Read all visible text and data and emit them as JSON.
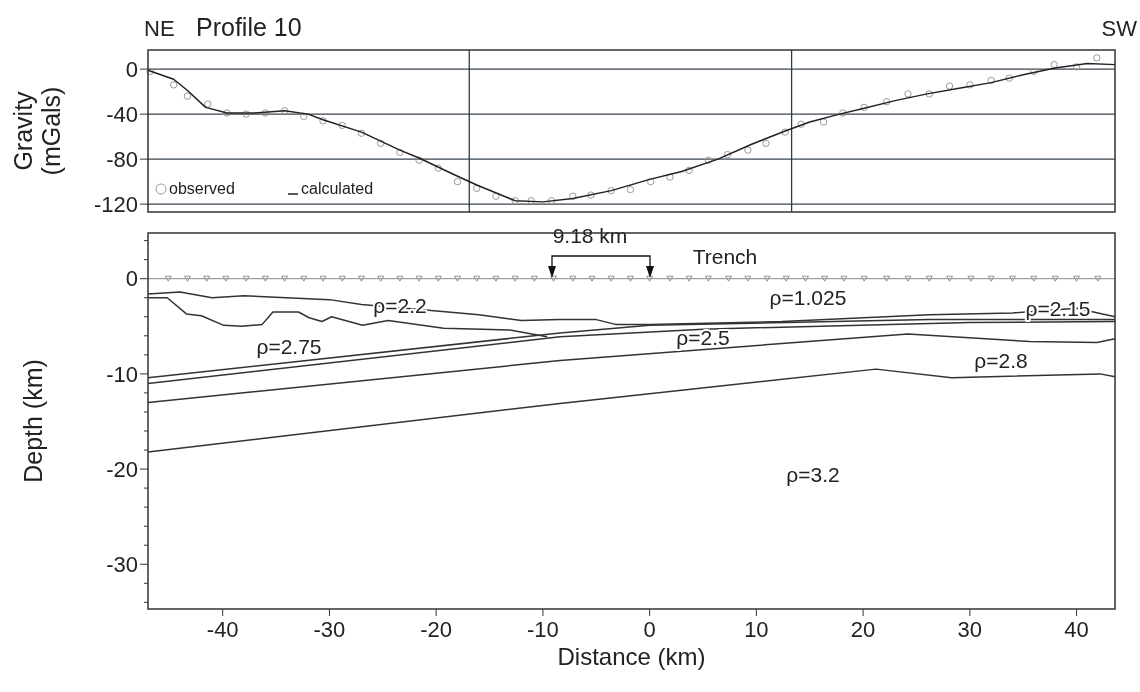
{
  "chart_data": [
    {
      "type": "scatter",
      "title": "Profile 10",
      "ylabel": "Gravity (mGals)",
      "annotations": [
        "NE",
        "SW"
      ],
      "xlim": [
        -47,
        43.6
      ],
      "ylim": [
        -127,
        17
      ],
      "yticks": [
        0,
        -40,
        -80,
        -120
      ],
      "tick_labels": "y",
      "grid": "y",
      "legend": "bottom left",
      "ref_lines": [
        {
          "axis": "x",
          "value": -16.9,
          "color": "#2e3b4a"
        },
        {
          "axis": "x",
          "value": 13.3,
          "color": "#2e3b4a"
        }
      ],
      "series": [
        {
          "name": "observed",
          "marker": "circle",
          "color": "#999999",
          "x": [
            -46.8,
            -44.6,
            -43.3,
            -41.4,
            -39.6,
            -37.8,
            -36.0,
            -34.2,
            -32.4,
            -30.6,
            -28.8,
            -27.0,
            -25.2,
            -23.4,
            -21.6,
            -19.8,
            -18.0,
            -16.2,
            -14.4,
            -12.6,
            -11.1,
            -9.2,
            -7.2,
            -5.5,
            -3.6,
            -1.8,
            0.1,
            1.9,
            3.7,
            5.5,
            7.3,
            9.2,
            10.9,
            12.7,
            14.2,
            16.3,
            18.1,
            20.1,
            22.2,
            24.2,
            26.2,
            28.1,
            30.0,
            32.0,
            33.7,
            36.0,
            37.9,
            40.0,
            41.9
          ],
          "values": [
            -2,
            -14,
            -24,
            -31,
            -39,
            -40,
            -39,
            -37,
            -42,
            -46,
            -50,
            -57,
            -66,
            -74,
            -81,
            -88,
            -100,
            -106,
            -113,
            -117,
            -117,
            -117,
            -113,
            -112,
            -108,
            -107,
            -100,
            -96,
            -90,
            -81,
            -76,
            -72,
            -66,
            -56,
            -49,
            -47,
            -39,
            -34,
            -29,
            -22,
            -22,
            -15,
            -14,
            -10,
            -8,
            -2,
            4,
            2,
            10
          ]
        },
        {
          "name": "calculated",
          "type": "line",
          "color": "#222222",
          "x": [
            -47,
            -44.6,
            -43.3,
            -41.6,
            -39.6,
            -37,
            -34.2,
            -32,
            -30.6,
            -27,
            -23.4,
            -21.6,
            -18.5,
            -16.2,
            -12.6,
            -10,
            -7.2,
            -3.6,
            0,
            3,
            6.4,
            9.5,
            12.7,
            15,
            17.8,
            20,
            23,
            26,
            29,
            32,
            35,
            38,
            41,
            43.6
          ],
          "values": [
            -1,
            -9,
            -19,
            -34,
            -39,
            -39,
            -37,
            -40,
            -45,
            -56,
            -72,
            -79,
            -93,
            -103,
            -117,
            -118,
            -115,
            -108,
            -98,
            -91,
            -80,
            -67,
            -55,
            -47,
            -40,
            -35,
            -28,
            -22,
            -17,
            -12,
            -5,
            1,
            5,
            4
          ]
        }
      ]
    },
    {
      "type": "line",
      "xlabel": "Distance (km)",
      "ylabel": "Depth (km)",
      "xlim": [
        -47,
        43.6
      ],
      "ylim": [
        -34.7,
        4.8
      ],
      "xticks": [
        -40,
        -30,
        -20,
        -10,
        0,
        10,
        20,
        30,
        40
      ],
      "yticks": [
        {
          "value": 4,
          "label": null
        },
        {
          "value": 2,
          "label": null
        },
        0,
        {
          "value": -2,
          "label": null
        },
        {
          "value": -4,
          "label": null
        },
        {
          "value": -6,
          "label": null
        },
        {
          "value": -8,
          "label": null
        },
        -10,
        {
          "value": -12,
          "label": null
        },
        {
          "value": -14,
          "label": null
        },
        {
          "value": -16,
          "label": null
        },
        {
          "value": -18,
          "label": null
        },
        -20,
        {
          "value": -22,
          "label": null
        },
        {
          "value": -24,
          "label": null
        },
        {
          "value": -26,
          "label": null
        },
        {
          "value": -28,
          "label": null
        },
        -30,
        {
          "value": -32,
          "label": null
        },
        {
          "value": -34,
          "label": null
        }
      ],
      "ref_lines": [
        {
          "axis": "y",
          "value": 0,
          "color": "#888888"
        }
      ],
      "annotations": [
        "9.18 km",
        "Trench",
        "ρ=2.2",
        "ρ=2.75",
        "ρ=1.025",
        "ρ=2.15",
        "ρ=2.5",
        "ρ=2.8",
        "ρ=3.2"
      ],
      "series": [
        {
          "type": "scatter",
          "marker": "triangle",
          "color": "#888888",
          "x": [
            -45.1,
            -43.3,
            -41.5,
            -39.7,
            -37.8,
            -36.0,
            -34.2,
            -32.4,
            -30.6,
            -28.8,
            -27.0,
            -25.2,
            -23.4,
            -21.6,
            -19.8,
            -18.0,
            -16.2,
            -14.4,
            -12.6,
            -10.8,
            -9.0,
            -7.2,
            -5.4,
            -3.6,
            -1.8,
            0,
            1.9,
            3.7,
            5.5,
            7.4,
            9.2,
            11.0,
            12.8,
            14.6,
            16.4,
            18.2,
            20.1,
            22.2,
            24.2,
            26.2,
            28.1,
            30.1,
            32.0,
            34.0,
            36.0,
            38.0,
            40.0,
            42.0
          ],
          "values": [
            0,
            0,
            0,
            0,
            0,
            0,
            0,
            0,
            0,
            0,
            0,
            0,
            0,
            0,
            0,
            0,
            0,
            0,
            0,
            0,
            0,
            0,
            0,
            0,
            0,
            0,
            0,
            0,
            0,
            0,
            0,
            0,
            0,
            0,
            0,
            0,
            0,
            0,
            0,
            0,
            0,
            0,
            0,
            0,
            0,
            0,
            0,
            0
          ]
        },
        {
          "type": "line",
          "color": "#333333",
          "x": [
            -47,
            -44,
            -41,
            -38,
            -30,
            -27,
            -21,
            -16,
            -12,
            -8.4,
            -5,
            -3.2,
            0,
            12.4,
            26.2,
            34,
            40,
            43.6
          ],
          "values": [
            -1.6,
            -1.4,
            -2.0,
            -1.8,
            -2.2,
            -2.7,
            -3.3,
            -3.8,
            -4.4,
            -4.3,
            -4.3,
            -4.8,
            -4.8,
            -4.5,
            -3.8,
            -3.6,
            -3.1,
            -4.0
          ]
        },
        {
          "type": "line",
          "color": "#333333",
          "x": [
            -47,
            -45.2,
            -43.4,
            -42,
            -39.9,
            -38.2,
            -36.3,
            -35.3,
            -32.9,
            -31.9,
            -30.7,
            -29.8,
            -26.9,
            -24.5,
            -19.3,
            -13.1,
            -9.6
          ],
          "values": [
            -2.0,
            -2.0,
            -3.7,
            -3.9,
            -4.9,
            -5.0,
            -4.8,
            -3.5,
            -3.5,
            -4.1,
            -4.5,
            -4.0,
            -4.9,
            -4.4,
            -5.2,
            -5.4,
            -6.1
          ]
        },
        {
          "type": "line",
          "color": "#333333",
          "x": [
            -47,
            -8.4,
            0,
            26.2,
            43.6
          ],
          "values": [
            -10.4,
            -5.7,
            -4.9,
            -4.3,
            -4.3
          ]
        },
        {
          "type": "line",
          "color": "#333333",
          "x": [
            -47,
            -8.4,
            5,
            30,
            43.6
          ],
          "values": [
            -11.0,
            -6.1,
            -5.3,
            -4.6,
            -4.5
          ]
        },
        {
          "type": "line",
          "color": "#333333",
          "x": [
            -47,
            -8.4,
            24.2,
            35.6,
            41.9,
            43.6
          ],
          "values": [
            -13.0,
            -8.6,
            -5.8,
            -6.6,
            -6.7,
            -6.3
          ]
        },
        {
          "type": "line",
          "color": "#333333",
          "x": [
            -47,
            -8.4,
            21.2,
            28.3,
            42.2,
            43.6
          ],
          "values": [
            -18.2,
            -13.1,
            -9.5,
            -10.4,
            -10.0,
            -10.3
          ]
        }
      ]
    }
  ]
}
